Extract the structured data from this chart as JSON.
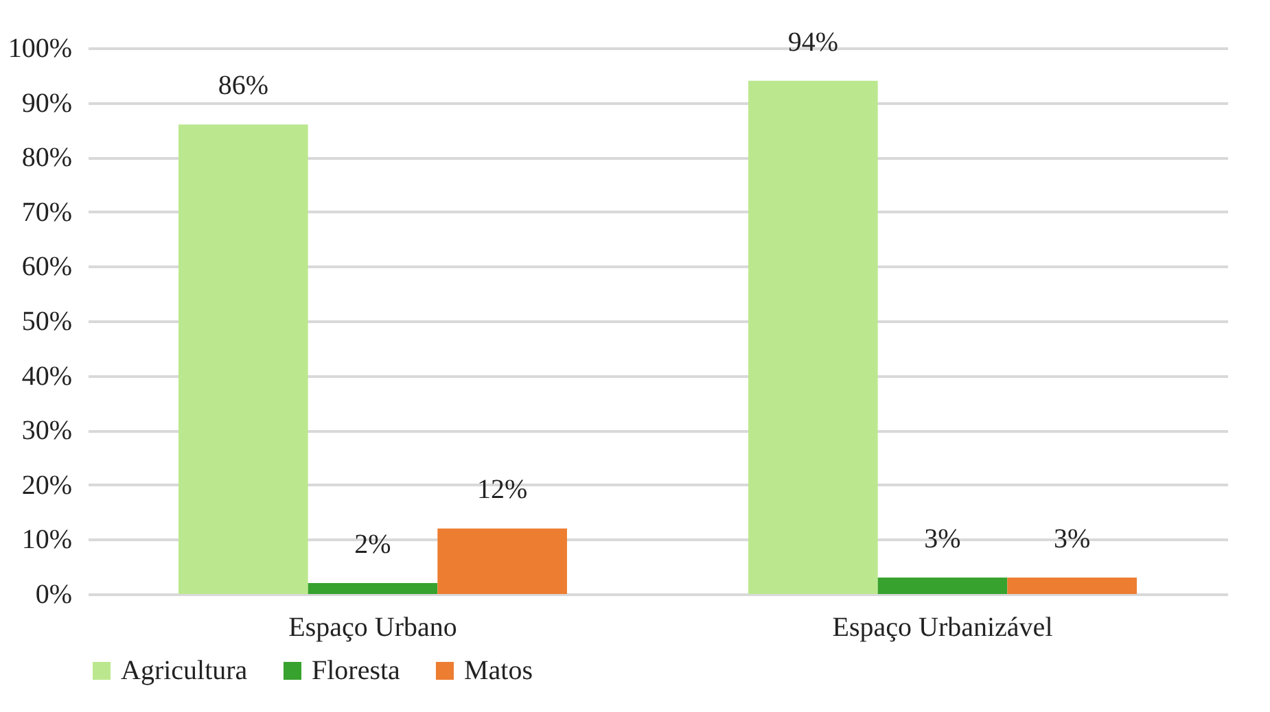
{
  "chart_data": {
    "type": "bar",
    "categories": [
      "Espaço Urbano",
      "Espaço Urbanizável"
    ],
    "series": [
      {
        "name": "Agricultura",
        "color": "#bbe88e",
        "values": [
          86,
          94
        ],
        "value_labels": [
          "86%",
          "94%"
        ]
      },
      {
        "name": "Floresta",
        "color": "#37a22e",
        "values": [
          2,
          3
        ],
        "value_labels": [
          "2%",
          "3%"
        ]
      },
      {
        "name": "Matos",
        "color": "#ed7d31",
        "values": [
          12,
          3
        ],
        "value_labels": [
          "12%",
          "3%"
        ]
      }
    ],
    "ylim": [
      0,
      100
    ],
    "yticks": [
      {
        "value": 0,
        "label": "0%"
      },
      {
        "value": 10,
        "label": "10%"
      },
      {
        "value": 20,
        "label": "20%"
      },
      {
        "value": 30,
        "label": "30%"
      },
      {
        "value": 40,
        "label": "40%"
      },
      {
        "value": 50,
        "label": "50%"
      },
      {
        "value": 60,
        "label": "60%"
      },
      {
        "value": 70,
        "label": "70%"
      },
      {
        "value": 80,
        "label": "80%"
      },
      {
        "value": 90,
        "label": "90%"
      },
      {
        "value": 100,
        "label": "100%"
      }
    ],
    "grid": "y",
    "legend": "bottom"
  }
}
